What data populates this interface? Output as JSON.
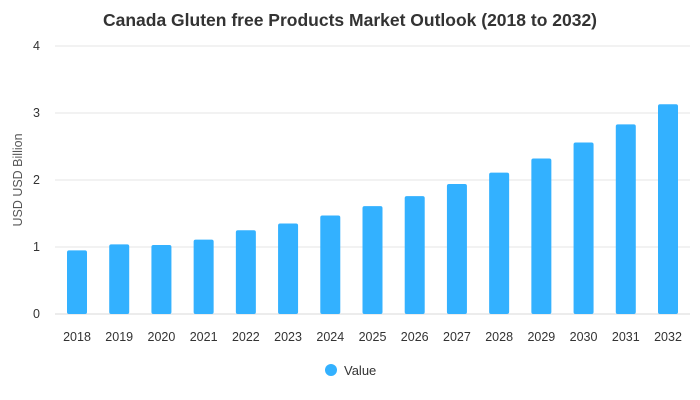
{
  "chart_data": {
    "type": "bar",
    "title": "Canada Gluten free Products Market Outlook (2018 to 2032)",
    "xlabel": "",
    "ylabel": "USD USD Billion",
    "categories": [
      "2018",
      "2019",
      "2020",
      "2021",
      "2022",
      "2023",
      "2024",
      "2025",
      "2026",
      "2027",
      "2028",
      "2029",
      "2030",
      "2031",
      "2032"
    ],
    "series": [
      {
        "name": "Value",
        "color": "#33b1ff",
        "values": [
          0.95,
          1.04,
          1.03,
          1.11,
          1.25,
          1.35,
          1.47,
          1.61,
          1.76,
          1.94,
          2.11,
          2.32,
          2.56,
          2.83,
          3.13
        ]
      }
    ],
    "ylim": [
      0,
      4
    ],
    "yticks": [
      0,
      1,
      2,
      3,
      4
    ],
    "grid": true,
    "legend": "bottom-center"
  }
}
